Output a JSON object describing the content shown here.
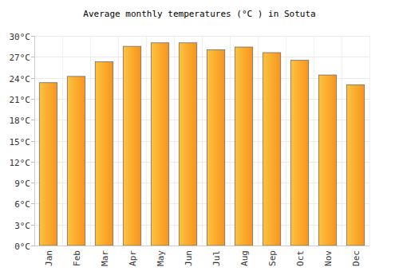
{
  "chart_data": {
    "type": "bar",
    "title": "Average monthly temperatures (°C ) in Sotuta",
    "categories": [
      "Jan",
      "Feb",
      "Mar",
      "Apr",
      "May",
      "Jun",
      "Jul",
      "Aug",
      "Sep",
      "Oct",
      "Nov",
      "Dec"
    ],
    "values": [
      23.3,
      24.2,
      26.3,
      28.5,
      29.0,
      29.0,
      28.0,
      28.4,
      27.6,
      26.5,
      24.4,
      23.0
    ],
    "color": "#f7941d",
    "ylim": [
      0,
      30
    ],
    "yticks": [
      {
        "value": 0,
        "label": "0°C"
      },
      {
        "value": 3,
        "label": "3°C"
      },
      {
        "value": 6,
        "label": "6°C"
      },
      {
        "value": 9,
        "label": "9°C"
      },
      {
        "value": 12,
        "label": "12°C"
      },
      {
        "value": 15,
        "label": "15°C"
      },
      {
        "value": 18,
        "label": "18°C"
      },
      {
        "value": 21,
        "label": "21°C"
      },
      {
        "value": 24,
        "label": "24°C"
      },
      {
        "value": 27,
        "label": "27°C"
      },
      {
        "value": 30,
        "label": "30°C"
      }
    ],
    "grid": true
  }
}
